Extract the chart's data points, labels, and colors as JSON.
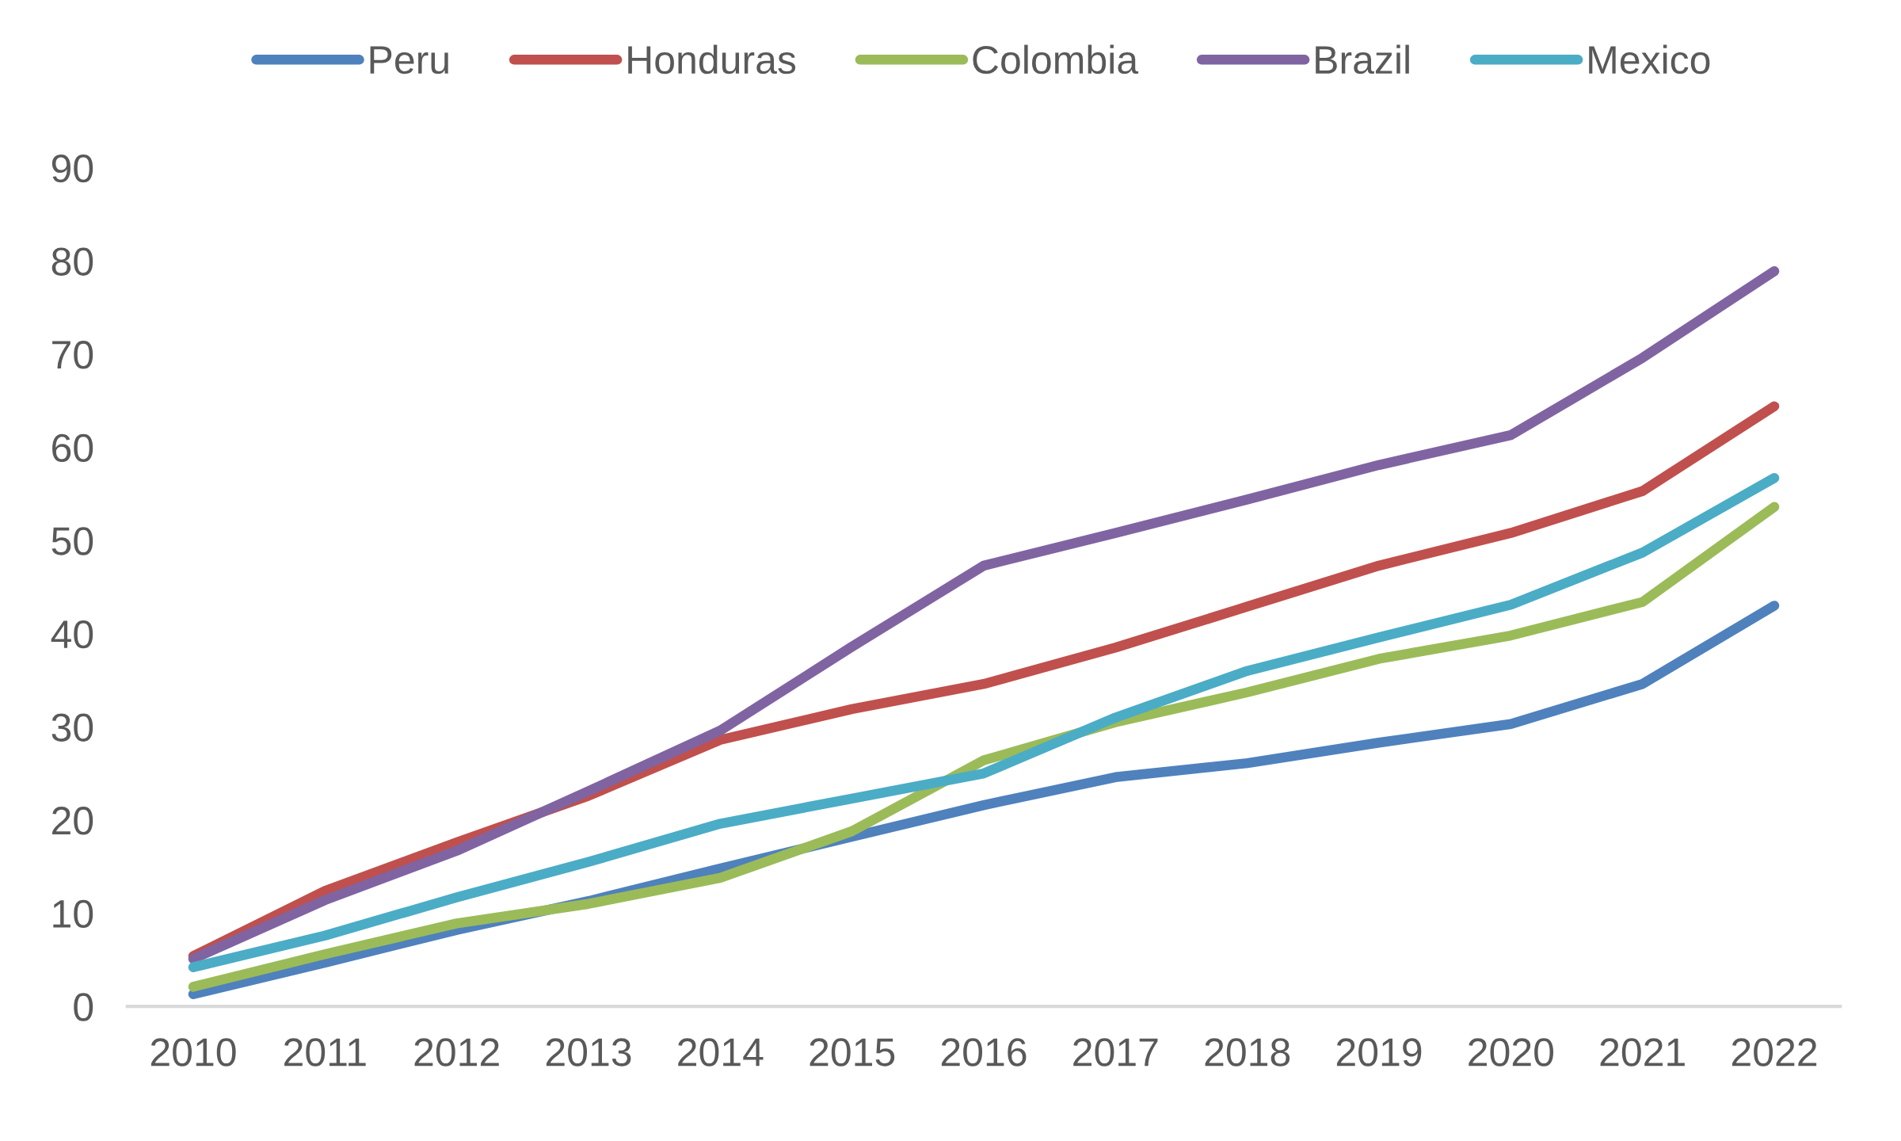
{
  "chart_data": {
    "type": "line",
    "categories": [
      "2010",
      "2011",
      "2012",
      "2013",
      "2014",
      "2015",
      "2016",
      "2017",
      "2018",
      "2019",
      "2020",
      "2021",
      "2022"
    ],
    "series": [
      {
        "name": "Peru",
        "color": "#4f81bd",
        "values": [
          1.3,
          4.7,
          8.2,
          11.3,
          14.8,
          18.2,
          21.6,
          24.6,
          26.1,
          28.3,
          30.3,
          34.6,
          43.0
        ]
      },
      {
        "name": "Honduras",
        "color": "#c0504d",
        "values": [
          5.4,
          12.4,
          17.6,
          22.6,
          28.6,
          31.9,
          34.6,
          38.5,
          42.9,
          47.3,
          50.8,
          55.3,
          64.4
        ]
      },
      {
        "name": "Colombia",
        "color": "#9bbb59",
        "values": [
          2.1,
          5.6,
          8.9,
          11.0,
          13.8,
          18.8,
          26.4,
          30.5,
          33.7,
          37.3,
          39.8,
          43.4,
          53.6
        ]
      },
      {
        "name": "Brazil",
        "color": "#8064a2",
        "values": [
          5.1,
          11.4,
          16.7,
          23.1,
          29.6,
          38.6,
          47.3,
          50.8,
          54.4,
          58.1,
          61.3,
          69.6,
          78.9
        ]
      },
      {
        "name": "Mexico",
        "color": "#4bacc6",
        "values": [
          4.2,
          7.6,
          11.7,
          15.5,
          19.6,
          22.3,
          25.0,
          31.0,
          36.0,
          39.6,
          43.1,
          48.7,
          56.7
        ]
      }
    ],
    "ylim": [
      0,
      90
    ],
    "yticks": [
      0,
      10,
      20,
      30,
      40,
      50,
      60,
      70,
      80,
      90
    ],
    "grid": false,
    "legend": "top",
    "line_style": "solid"
  }
}
